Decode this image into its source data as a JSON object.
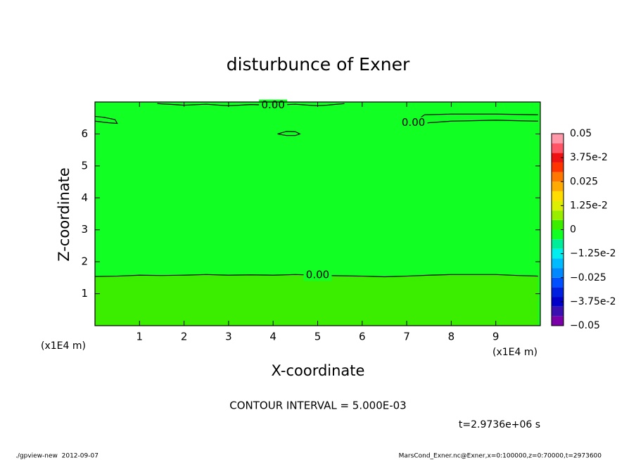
{
  "chart_data": {
    "type": "contour",
    "title": "disturbunce of Exner",
    "x_label": "X-coordinate",
    "y_label": "Z-coordinate",
    "axis_unit": "(x1E4 m)",
    "xlim": [
      0,
      10
    ],
    "ylim": [
      0,
      7
    ],
    "xticks": [
      1,
      2,
      3,
      4,
      5,
      6,
      7,
      8,
      9
    ],
    "yticks": [
      1,
      2,
      3,
      4,
      5,
      6
    ],
    "levels": [
      -0.05,
      -0.045,
      -0.04,
      -0.035,
      -0.03,
      -0.025,
      -0.02,
      -0.015,
      -0.01,
      -0.005,
      0,
      0.005,
      0.01,
      0.015,
      0.02,
      0.025,
      0.03,
      0.035,
      0.04,
      0.045,
      0.05
    ],
    "colors": [
      "#7a00a8",
      "#3a10b0",
      "#0000c8",
      "#0020e0",
      "#0050ff",
      "#0088ff",
      "#00bbff",
      "#00eeee",
      "#00ee99",
      "#11ff22",
      "#3bee00",
      "#99ee00",
      "#ddee00",
      "#ffdd00",
      "#ffaa00",
      "#ff7700",
      "#ff3300",
      "#ee1111",
      "#ff5566",
      "#ff99aa"
    ],
    "colorbar_ticks": [
      {
        "value": -0.05,
        "label": "−0.05"
      },
      {
        "value": -0.0375,
        "label": "−3.75e-2"
      },
      {
        "value": -0.025,
        "label": "−0.025"
      },
      {
        "value": -0.0125,
        "label": "−1.25e-2"
      },
      0,
      {
        "value": 0.0125,
        "label": "1.25e-2"
      },
      0.025,
      {
        "value": 0.0375,
        "label": "3.75e-2"
      },
      0.05
    ],
    "contours": [
      {
        "label": "0.00",
        "x": [
          0,
          0.5,
          1,
          1.5,
          2,
          2.5,
          3,
          3.5,
          4,
          4.5,
          5,
          5.5,
          6,
          6.5,
          7,
          7.5,
          8,
          8.5,
          9,
          9.5,
          9.95
        ],
        "z": [
          1.54,
          1.55,
          1.58,
          1.57,
          1.58,
          1.6,
          1.58,
          1.59,
          1.58,
          1.6,
          1.58,
          1.56,
          1.55,
          1.53,
          1.55,
          1.58,
          1.6,
          1.6,
          1.6,
          1.57,
          1.55
        ]
      },
      {
        "label": "0.00",
        "x": [
          9.95,
          9,
          8,
          7.5,
          7.2,
          7.15,
          7.4,
          8,
          9,
          9.95
        ],
        "z": [
          6.4,
          6.43,
          6.4,
          6.35,
          6.3,
          6.35,
          6.6,
          6.62,
          6.62,
          6.6
        ]
      },
      {
        "label": "0.00",
        "x": [
          1.4,
          2,
          2.5,
          3,
          3.5,
          4,
          4.5,
          5,
          5.2,
          5.6
        ],
        "z": [
          6.95,
          6.9,
          6.93,
          6.88,
          6.92,
          6.9,
          6.93,
          6.88,
          6.9,
          6.95
        ]
      },
      {
        "x": [
          4.1,
          4.3,
          4.5,
          4.6,
          4.5,
          4.3,
          4.1
        ],
        "z": [
          6.0,
          6.08,
          6.07,
          6.0,
          5.95,
          5.95,
          6.0
        ]
      },
      {
        "x": [
          0,
          0.2,
          0.45,
          0.5,
          0.3,
          0
        ],
        "z": [
          6.55,
          6.52,
          6.45,
          6.33,
          6.35,
          6.4
        ]
      }
    ],
    "contour_interval_text": "CONTOUR INTERVAL = 5.000E-03",
    "time_text": "t=2.9736e+06 s",
    "footer_left": "./gpview-new  2012-09-07",
    "footer_right": "MarsCond_Exner.nc@Exner,x=0:100000,z=0:70000,t=2973600"
  }
}
